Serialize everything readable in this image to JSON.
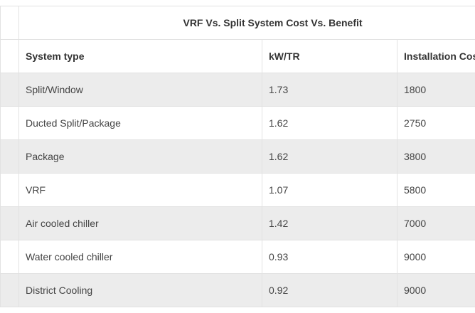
{
  "table": {
    "caption": "VRF Vs. Split System Cost Vs. Benefit",
    "columns": [
      "System type",
      "kW/TR",
      "Installation Cos"
    ],
    "rows": [
      {
        "system": "Split/Window",
        "kw_tr": "1.73",
        "cost": "1800"
      },
      {
        "system": "Ducted Split/Package",
        "kw_tr": "1.62",
        "cost": "2750"
      },
      {
        "system": "Package",
        "kw_tr": "1.62",
        "cost": "3800"
      },
      {
        "system": "VRF",
        "kw_tr": "1.07",
        "cost": "5800"
      },
      {
        "system": "Air cooled chiller",
        "kw_tr": "1.42",
        "cost": "7000"
      },
      {
        "system": "Water cooled chiller",
        "kw_tr": "0.93",
        "cost": "9000"
      },
      {
        "system": "District Cooling",
        "kw_tr": "0.92",
        "cost": "9000"
      }
    ]
  },
  "colors": {
    "shade": "#ececec",
    "border": "#e2e2e2",
    "text": "#333333"
  }
}
